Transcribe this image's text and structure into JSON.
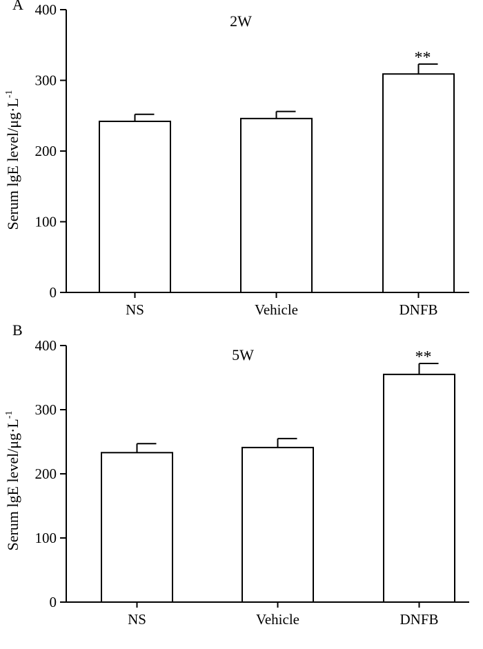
{
  "figure": {
    "panels": [
      {
        "panel_label": "A",
        "title": "2W",
        "ylabel_main": "Serum lgE level/μg·L",
        "ylabel_sup": "-1",
        "significance": "**"
      },
      {
        "panel_label": "B",
        "title": "5W",
        "ylabel_main": "Serum lgE level/μg·L",
        "ylabel_sup": "-1",
        "significance": "**"
      }
    ]
  },
  "chart_data": [
    {
      "type": "bar",
      "title": "2W",
      "panel_label": "A",
      "xlabel": "",
      "ylabel": "Serum lgE level/μg·L-1",
      "categories": [
        "NS",
        "Vehicle",
        "DNFB"
      ],
      "values": [
        242,
        246,
        309
      ],
      "errors": [
        10,
        10,
        14
      ],
      "annotations": [
        "",
        "",
        "**"
      ],
      "ylim": [
        0,
        400
      ],
      "yticks": [
        0,
        100,
        200,
        300,
        400
      ],
      "grid": false,
      "bar_color": "#ffffff",
      "edge_color": "#000000"
    },
    {
      "type": "bar",
      "title": "5W",
      "panel_label": "B",
      "xlabel": "",
      "ylabel": "Serum lgE level/μg·L-1",
      "categories": [
        "NS",
        "Vehicle",
        "DNFB"
      ],
      "values": [
        233,
        241,
        355
      ],
      "errors": [
        14,
        14,
        17
      ],
      "annotations": [
        "",
        "",
        "**"
      ],
      "ylim": [
        0,
        400
      ],
      "yticks": [
        0,
        100,
        200,
        300,
        400
      ],
      "grid": false,
      "bar_color": "#ffffff",
      "edge_color": "#000000"
    }
  ]
}
